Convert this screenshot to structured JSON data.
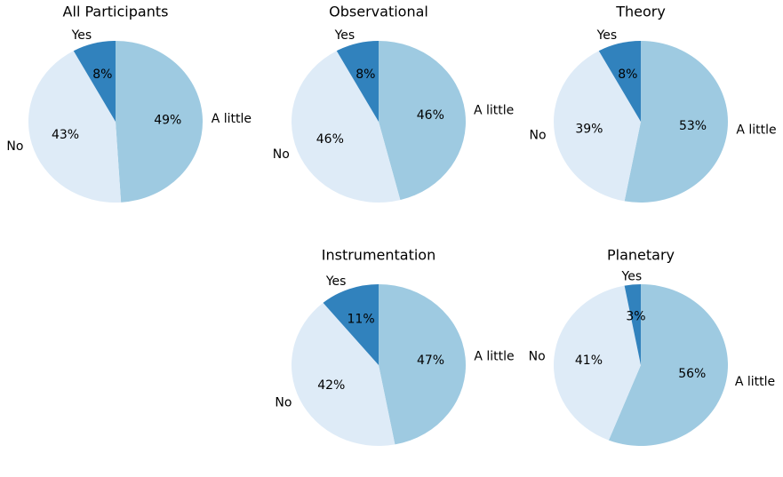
{
  "chart_data": [
    {
      "type": "pie",
      "title": "All Participants",
      "categories": [
        "A little",
        "No",
        "Yes"
      ],
      "values": [
        49,
        43,
        8
      ],
      "value_labels": [
        "49%",
        "43%",
        "8%"
      ],
      "colors": [
        "#9ecae1",
        "#deebf7",
        "#3182bd"
      ]
    },
    {
      "type": "pie",
      "title": "Observational",
      "categories": [
        "A little",
        "No",
        "Yes"
      ],
      "values": [
        46,
        46,
        8
      ],
      "value_labels": [
        "46%",
        "46%",
        "8%"
      ],
      "colors": [
        "#9ecae1",
        "#deebf7",
        "#3182bd"
      ]
    },
    {
      "type": "pie",
      "title": "Theory",
      "categories": [
        "A little",
        "No",
        "Yes"
      ],
      "values": [
        53,
        39,
        8
      ],
      "value_labels": [
        "53%",
        "39%",
        "8%"
      ],
      "colors": [
        "#9ecae1",
        "#deebf7",
        "#3182bd"
      ]
    },
    {
      "type": "pie",
      "title": "Instrumentation",
      "categories": [
        "A little",
        "No",
        "Yes"
      ],
      "values": [
        47,
        42,
        11
      ],
      "value_labels": [
        "47%",
        "42%",
        "11%"
      ],
      "colors": [
        "#9ecae1",
        "#deebf7",
        "#3182bd"
      ]
    },
    {
      "type": "pie",
      "title": "Planetary",
      "categories": [
        "A little",
        "No",
        "Yes"
      ],
      "values": [
        56,
        41,
        3
      ],
      "value_labels": [
        "56%",
        "41%",
        "3%"
      ],
      "colors": [
        "#9ecae1",
        "#deebf7",
        "#3182bd"
      ]
    }
  ]
}
